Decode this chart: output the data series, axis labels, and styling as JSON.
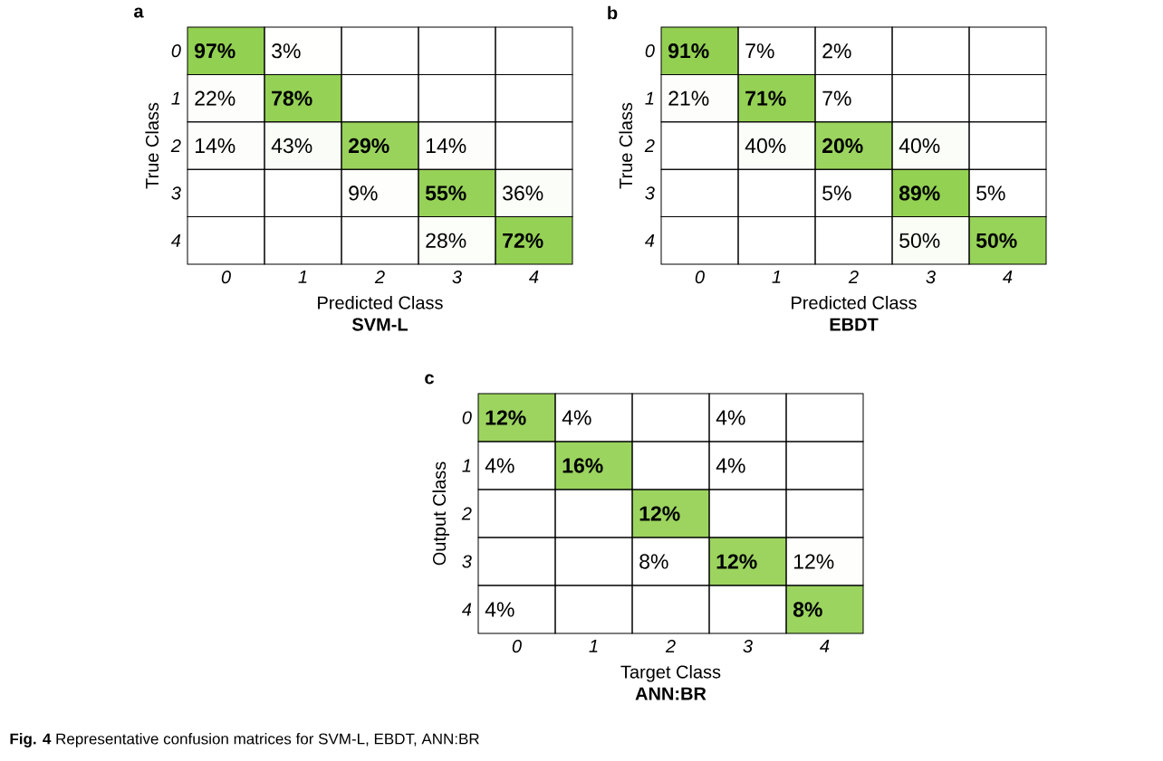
{
  "chart_data": [
    {
      "type": "heatmap",
      "title": "a",
      "subtitle": "SVM-L",
      "xlabel": "Predicted Class",
      "ylabel": "True Class",
      "color": "#92d050",
      "categories": [
        "0",
        "1",
        "2",
        "3",
        "4"
      ],
      "y_categories": [
        "0",
        "1",
        "2",
        "3",
        "4"
      ],
      "cells": [
        [
          97,
          3,
          null,
          null,
          null
        ],
        [
          22,
          78,
          null,
          null,
          null
        ],
        [
          14,
          43,
          29,
          14,
          null
        ],
        [
          null,
          null,
          9,
          55,
          36
        ],
        [
          null,
          null,
          null,
          28,
          72
        ]
      ],
      "cell_labels": [
        [
          "97%",
          "3%",
          null,
          null,
          null
        ],
        [
          "22%",
          "78%",
          null,
          null,
          null
        ],
        [
          "14%",
          "43%",
          "29%",
          "14%",
          null
        ],
        [
          null,
          null,
          "9%",
          "55%",
          "36%"
        ],
        [
          null,
          null,
          null,
          "28%",
          "72%"
        ]
      ]
    },
    {
      "type": "heatmap",
      "title": "b",
      "subtitle": "EBDT",
      "xlabel": "Predicted Class",
      "ylabel": "True Class",
      "color": "#92d050",
      "categories": [
        "0",
        "1",
        "2",
        "3",
        "4"
      ],
      "y_categories": [
        "0",
        "1",
        "2",
        "3",
        "4"
      ],
      "cells": [
        [
          91,
          7,
          2,
          null,
          null
        ],
        [
          21,
          71,
          7,
          null,
          null
        ],
        [
          null,
          40,
          20,
          40,
          null
        ],
        [
          null,
          null,
          5,
          89,
          5
        ],
        [
          null,
          null,
          null,
          50,
          50
        ]
      ],
      "cell_labels": [
        [
          "91%",
          "7%",
          "2%",
          null,
          null
        ],
        [
          "21%",
          "71%",
          "7%",
          null,
          null
        ],
        [
          null,
          "40%",
          "20%",
          "40%",
          null
        ],
        [
          null,
          null,
          "5%",
          "89%",
          "5%"
        ],
        [
          null,
          null,
          null,
          "50%",
          "50%"
        ]
      ]
    },
    {
      "type": "heatmap",
      "title": "c",
      "subtitle": "ANN:BR",
      "xlabel": "Target Class",
      "ylabel": "Output Class",
      "color": "#92d050",
      "categories": [
        "0",
        "1",
        "2",
        "3",
        "4"
      ],
      "y_categories": [
        "0",
        "1",
        "2",
        "3",
        "4"
      ],
      "cells": [
        [
          12,
          4,
          null,
          4,
          null
        ],
        [
          4,
          16,
          null,
          4,
          null
        ],
        [
          null,
          null,
          12,
          null,
          null
        ],
        [
          null,
          null,
          8,
          12,
          12
        ],
        [
          4,
          null,
          null,
          null,
          8
        ]
      ],
      "cell_labels": [
        [
          "12%",
          "4%",
          null,
          "4%",
          null
        ],
        [
          "4%",
          "16%",
          null,
          "4%",
          null
        ],
        [
          null,
          null,
          "12%",
          null,
          null
        ],
        [
          null,
          null,
          "8%",
          "12%",
          "12%"
        ],
        [
          "4%",
          null,
          null,
          null,
          "8%"
        ]
      ],
      "annotations": [
        "**Fig. 4** Representative confusion matrices for SVM-L, EBDT, ANN:BR"
      ]
    }
  ]
}
